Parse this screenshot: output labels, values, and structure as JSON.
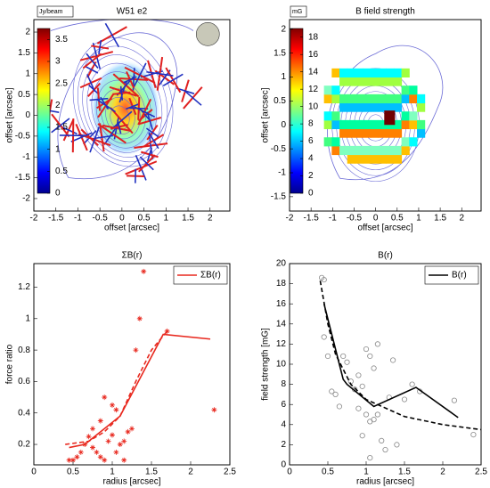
{
  "chart_data": [
    {
      "type": "image",
      "title": "W51 e2",
      "xlabel": "offset [arcsec]",
      "ylabel": "offset [arcsec]",
      "xlim": [
        -2,
        2.45
      ],
      "ylim": [
        -2.3,
        2.3
      ],
      "xticks": [
        -2,
        -1.5,
        -1,
        -0.5,
        0,
        0.5,
        1,
        1.5,
        2
      ],
      "yticks": [
        -2,
        -1.5,
        -1,
        -0.5,
        0,
        0.5,
        1,
        1.5,
        2
      ],
      "colorbar": {
        "label": "Jy/beam",
        "lim": [
          0,
          3.75
        ],
        "ticks": [
          0,
          0.5,
          1,
          1.5,
          2,
          2.5,
          3,
          3.5
        ]
      }
    },
    {
      "type": "image",
      "title": "B field strength",
      "xlabel": "offset [arcsec]",
      "ylabel": "offset [arcsec]",
      "xlim": [
        -2,
        2.45
      ],
      "ylim": [
        -1.8,
        2.2
      ],
      "xticks": [
        -2,
        -1.5,
        -1,
        -0.5,
        0,
        0.5,
        1,
        1.5,
        2
      ],
      "yticks": [
        -1.5,
        -1,
        -0.5,
        0,
        0.5,
        1,
        1.5,
        2
      ],
      "colorbar": {
        "label": "mG",
        "lim": [
          0,
          19
        ],
        "ticks": [
          0,
          2,
          4,
          6,
          8,
          10,
          12,
          14,
          16,
          18
        ]
      }
    },
    {
      "type": "line",
      "title": "ΣB(r)",
      "xlabel": "radius [arcsec]",
      "ylabel": "force ratio",
      "xlim": [
        0,
        2.5
      ],
      "ylim": [
        0.07,
        1.35
      ],
      "xticks": [
        0,
        0.5,
        1,
        1.5,
        2,
        2.5
      ],
      "yticks": [
        0.2,
        0.4,
        0.6,
        0.8,
        1,
        1.2
      ],
      "legend": "upper right",
      "series": [
        {
          "color": "#e8281e",
          "linestyle": "none",
          "marker": "star",
          "x": [
            1.4,
            1.35,
            1.3,
            1.7,
            2.3,
            0.9,
            1.0,
            1.05,
            0.75,
            0.45,
            0.5,
            0.55,
            0.6,
            0.65,
            0.7,
            0.75,
            0.8,
            0.85,
            0.9,
            0.95,
            1.0,
            1.05,
            1.1,
            1.15,
            1.2,
            1.25,
            0.85,
            1.15
          ],
          "values": [
            1.3,
            1.0,
            0.8,
            0.92,
            0.42,
            0.5,
            0.45,
            0.42,
            0.3,
            0.1,
            0.1,
            0.12,
            0.15,
            0.2,
            0.25,
            0.18,
            0.15,
            0.12,
            0.1,
            0.22,
            0.26,
            0.15,
            0.2,
            0.22,
            0.28,
            0.3,
            0.35,
            0.1
          ]
        },
        {
          "name": "ΣB(r)",
          "color": "#e8281e",
          "linestyle": "solid",
          "marker": "none",
          "x": [
            0.45,
            0.65,
            0.9,
            1.1,
            1.65,
            2.25
          ],
          "values": [
            0.18,
            0.2,
            0.3,
            0.38,
            0.9,
            0.87
          ]
        },
        {
          "color": "#e8281e",
          "linestyle": "dashed",
          "marker": "none",
          "x": [
            0.4,
            0.7,
            0.9,
            1.1,
            1.3,
            1.5,
            1.7
          ],
          "values": [
            0.2,
            0.22,
            0.28,
            0.38,
            0.6,
            0.8,
            0.92
          ]
        }
      ]
    },
    {
      "type": "line",
      "title": "B(r)",
      "xlabel": "radius [arcsec]",
      "ylabel": "field strength [mG]",
      "xlim": [
        0,
        2.5
      ],
      "ylim": [
        0,
        20
      ],
      "xticks": [
        0,
        0.5,
        1,
        1.5,
        2,
        2.5
      ],
      "yticks": [
        0,
        2,
        4,
        6,
        8,
        10,
        12,
        14,
        16,
        18,
        20
      ],
      "legend": "upper right",
      "series": [
        {
          "color": "#888888",
          "linestyle": "none",
          "marker": "circle",
          "x": [
            0.42,
            0.45,
            0.45,
            0.5,
            0.55,
            0.6,
            0.65,
            0.7,
            0.75,
            0.8,
            0.85,
            0.9,
            0.95,
            1.0,
            1.05,
            1.1,
            1.0,
            1.05,
            1.1,
            1.15,
            1.2,
            1.25,
            1.3,
            1.35,
            1.4,
            1.05,
            1.5,
            1.6,
            1.7,
            2.15,
            2.4,
            0.9,
            0.95,
            1.15
          ],
          "values": [
            18.6,
            18.4,
            12.7,
            10.8,
            7.3,
            7,
            5.8,
            10.8,
            10.2,
            8.3,
            7.5,
            5.6,
            2.9,
            5,
            4.3,
            4.5,
            11.5,
            10.8,
            9.6,
            12,
            2.4,
            1.5,
            6.7,
            10.4,
            2,
            0.7,
            6.5,
            8,
            7.3,
            6.4,
            3,
            8.9,
            7.8,
            5
          ]
        },
        {
          "name": "B(r)",
          "color": "#000000",
          "linestyle": "solid",
          "marker": "none",
          "x": [
            0.45,
            0.7,
            0.75,
            1.1,
            1.65,
            2.2
          ],
          "values": [
            16,
            8.5,
            8,
            5.8,
            7.7,
            4.7
          ]
        },
        {
          "color": "#000000",
          "linestyle": "dashed",
          "marker": "none",
          "x": [
            0.4,
            0.5,
            0.6,
            0.8,
            1.0,
            1.5,
            2.0,
            2.5
          ],
          "values": [
            18.3,
            14,
            11,
            8,
            6.5,
            4.8,
            4,
            3.5
          ]
        }
      ]
    }
  ]
}
